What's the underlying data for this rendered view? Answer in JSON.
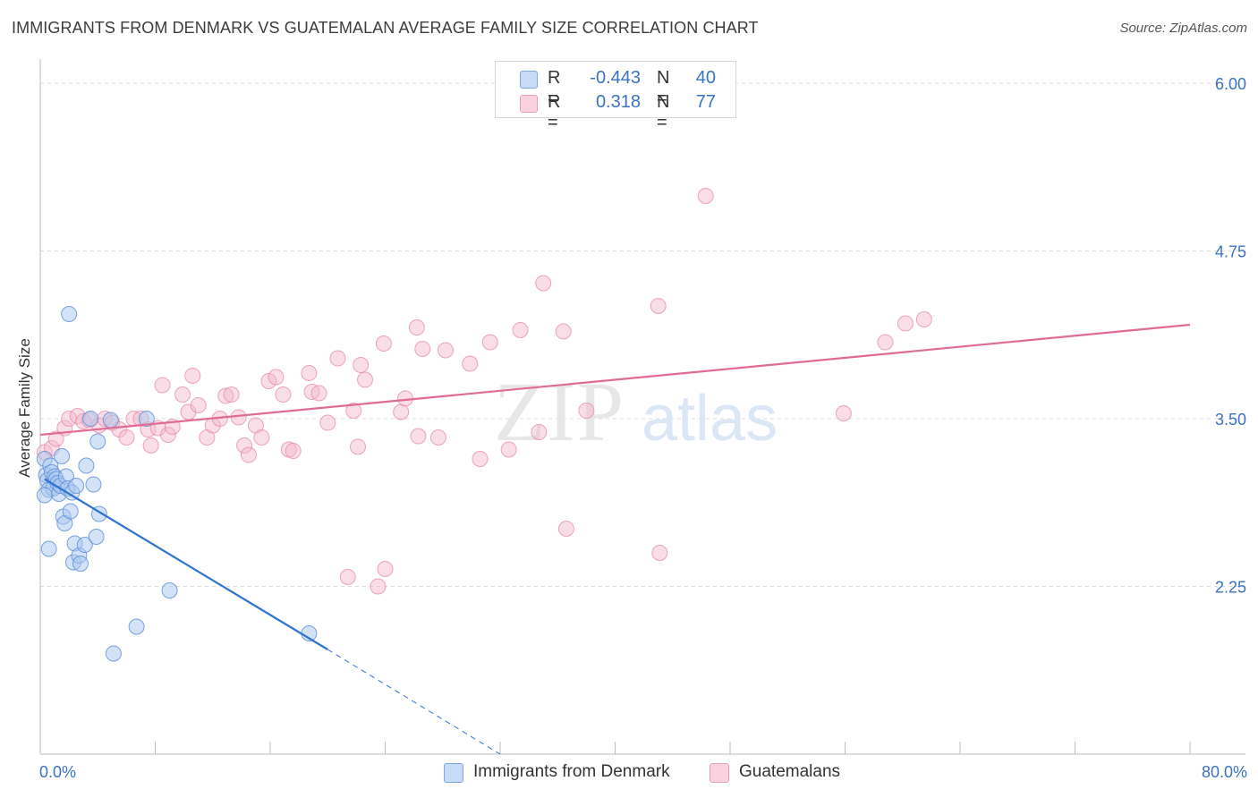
{
  "header": {
    "title": "IMMIGRANTS FROM DENMARK VS GUATEMALAN AVERAGE FAMILY SIZE CORRELATION CHART",
    "source": "Source: ZipAtlas.com"
  },
  "legend_stats": {
    "rows": [
      {
        "r_label": "R =",
        "r_value": "-0.443",
        "n_label": "N =",
        "n_value": "40",
        "color": "#a9c6f0"
      },
      {
        "r_label": "R =",
        "r_value": "0.318",
        "n_label": "N =",
        "n_value": "77",
        "color": "#f5b6c9"
      }
    ]
  },
  "bottom_legend": {
    "series_a": "Immigrants from Denmark",
    "series_b": "Guatemalans"
  },
  "watermark": {
    "zip": "ZIP",
    "atlas": "atlas"
  },
  "chart_data": {
    "type": "scatter",
    "title": "IMMIGRANTS FROM DENMARK VS GUATEMALAN AVERAGE FAMILY SIZE CORRELATION CHART",
    "xlabel": "",
    "ylabel": "Average Family Size",
    "xlim": [
      0,
      80
    ],
    "ylim": [
      1.0,
      6.1
    ],
    "x_tick_labels": [
      "0.0%",
      "80.0%"
    ],
    "y_ticks": [
      2.25,
      3.5,
      4.75,
      6.0
    ],
    "y_tick_labels": [
      "2.25",
      "3.50",
      "4.75",
      "6.00"
    ],
    "grid": true,
    "colors": {
      "denmark_fill": "#a9c6f0",
      "denmark_stroke": "#5b8fd6",
      "denmark_line": "#2f74d0",
      "guatemala_fill": "#f5b6c9",
      "guatemala_stroke": "#e58aa7",
      "guatemala_line": "#e06c93"
    },
    "series": [
      {
        "name": "Immigrants from Denmark",
        "points": [
          [
            0.3,
            3.2
          ],
          [
            0.4,
            3.08
          ],
          [
            0.5,
            3.04
          ],
          [
            0.6,
            2.97
          ],
          [
            0.7,
            3.15
          ],
          [
            0.8,
            3.1
          ],
          [
            0.9,
            2.98
          ],
          [
            1.0,
            3.07
          ],
          [
            1.1,
            3.05
          ],
          [
            1.2,
            3.02
          ],
          [
            1.3,
            2.94
          ],
          [
            1.4,
            3.0
          ],
          [
            1.5,
            3.22
          ],
          [
            1.6,
            2.77
          ],
          [
            1.7,
            2.72
          ],
          [
            1.8,
            3.07
          ],
          [
            1.9,
            2.98
          ],
          [
            2.0,
            4.28
          ],
          [
            2.1,
            2.81
          ],
          [
            2.2,
            2.95
          ],
          [
            2.3,
            2.43
          ],
          [
            2.4,
            2.57
          ],
          [
            2.5,
            3.0
          ],
          [
            2.7,
            2.48
          ],
          [
            2.8,
            2.42
          ],
          [
            3.1,
            2.56
          ],
          [
            3.2,
            3.15
          ],
          [
            3.5,
            3.5
          ],
          [
            3.7,
            3.01
          ],
          [
            3.9,
            2.62
          ],
          [
            4.0,
            3.33
          ],
          [
            4.1,
            2.79
          ],
          [
            4.9,
            3.49
          ],
          [
            0.6,
            2.53
          ],
          [
            6.7,
            1.95
          ],
          [
            9.0,
            2.22
          ],
          [
            5.1,
            1.75
          ],
          [
            18.7,
            1.9
          ],
          [
            0.3,
            2.93
          ],
          [
            7.4,
            3.5
          ]
        ],
        "trend": {
          "x0": 0.3,
          "y0": 3.05,
          "x1": 20.0,
          "y1": 1.78,
          "dash_to_x": 32.0,
          "dash_to_y": 1.0
        }
      },
      {
        "name": "Guatemalans",
        "points": [
          [
            0.3,
            3.25
          ],
          [
            0.8,
            3.28
          ],
          [
            1.1,
            3.35
          ],
          [
            1.7,
            3.43
          ],
          [
            2.0,
            3.5
          ],
          [
            2.6,
            3.52
          ],
          [
            3.0,
            3.48
          ],
          [
            3.4,
            3.49
          ],
          [
            4.1,
            3.45
          ],
          [
            4.5,
            3.5
          ],
          [
            5.0,
            3.47
          ],
          [
            5.5,
            3.42
          ],
          [
            6.0,
            3.36
          ],
          [
            6.5,
            3.5
          ],
          [
            7.0,
            3.5
          ],
          [
            7.5,
            3.42
          ],
          [
            7.7,
            3.3
          ],
          [
            8.2,
            3.43
          ],
          [
            8.5,
            3.75
          ],
          [
            8.9,
            3.38
          ],
          [
            9.2,
            3.44
          ],
          [
            9.9,
            3.68
          ],
          [
            10.3,
            3.55
          ],
          [
            10.6,
            3.82
          ],
          [
            11.0,
            3.6
          ],
          [
            11.6,
            3.36
          ],
          [
            12.0,
            3.45
          ],
          [
            12.5,
            3.5
          ],
          [
            12.9,
            3.67
          ],
          [
            13.3,
            3.68
          ],
          [
            13.8,
            3.51
          ],
          [
            14.2,
            3.3
          ],
          [
            14.5,
            3.23
          ],
          [
            15.0,
            3.45
          ],
          [
            15.4,
            3.36
          ],
          [
            15.9,
            3.78
          ],
          [
            16.4,
            3.81
          ],
          [
            16.9,
            3.68
          ],
          [
            17.3,
            3.27
          ],
          [
            17.6,
            3.26
          ],
          [
            18.7,
            3.84
          ],
          [
            18.9,
            3.7
          ],
          [
            19.4,
            3.69
          ],
          [
            20.0,
            3.47
          ],
          [
            20.7,
            3.95
          ],
          [
            21.8,
            3.56
          ],
          [
            22.1,
            3.29
          ],
          [
            22.3,
            3.9
          ],
          [
            22.6,
            3.79
          ],
          [
            23.9,
            4.06
          ],
          [
            25.1,
            3.55
          ],
          [
            25.4,
            3.65
          ],
          [
            26.2,
            4.18
          ],
          [
            26.3,
            3.37
          ],
          [
            26.6,
            4.02
          ],
          [
            27.7,
            3.36
          ],
          [
            28.2,
            4.01
          ],
          [
            29.9,
            3.91
          ],
          [
            30.6,
            3.2
          ],
          [
            31.3,
            4.07
          ],
          [
            32.6,
            3.27
          ],
          [
            33.4,
            4.16
          ],
          [
            34.7,
            3.4
          ],
          [
            35.0,
            4.51
          ],
          [
            36.4,
            4.15
          ],
          [
            38.0,
            3.56
          ],
          [
            43.0,
            4.34
          ],
          [
            46.3,
            5.16
          ],
          [
            55.9,
            3.54
          ],
          [
            58.8,
            4.07
          ],
          [
            60.2,
            4.21
          ],
          [
            61.5,
            4.24
          ],
          [
            36.6,
            2.68
          ],
          [
            43.1,
            2.5
          ],
          [
            21.4,
            2.32
          ],
          [
            24.0,
            2.38
          ],
          [
            23.5,
            2.25
          ]
        ],
        "trend": {
          "x0": 0.0,
          "y0": 3.38,
          "x1": 80.0,
          "y1": 4.2
        }
      }
    ]
  }
}
